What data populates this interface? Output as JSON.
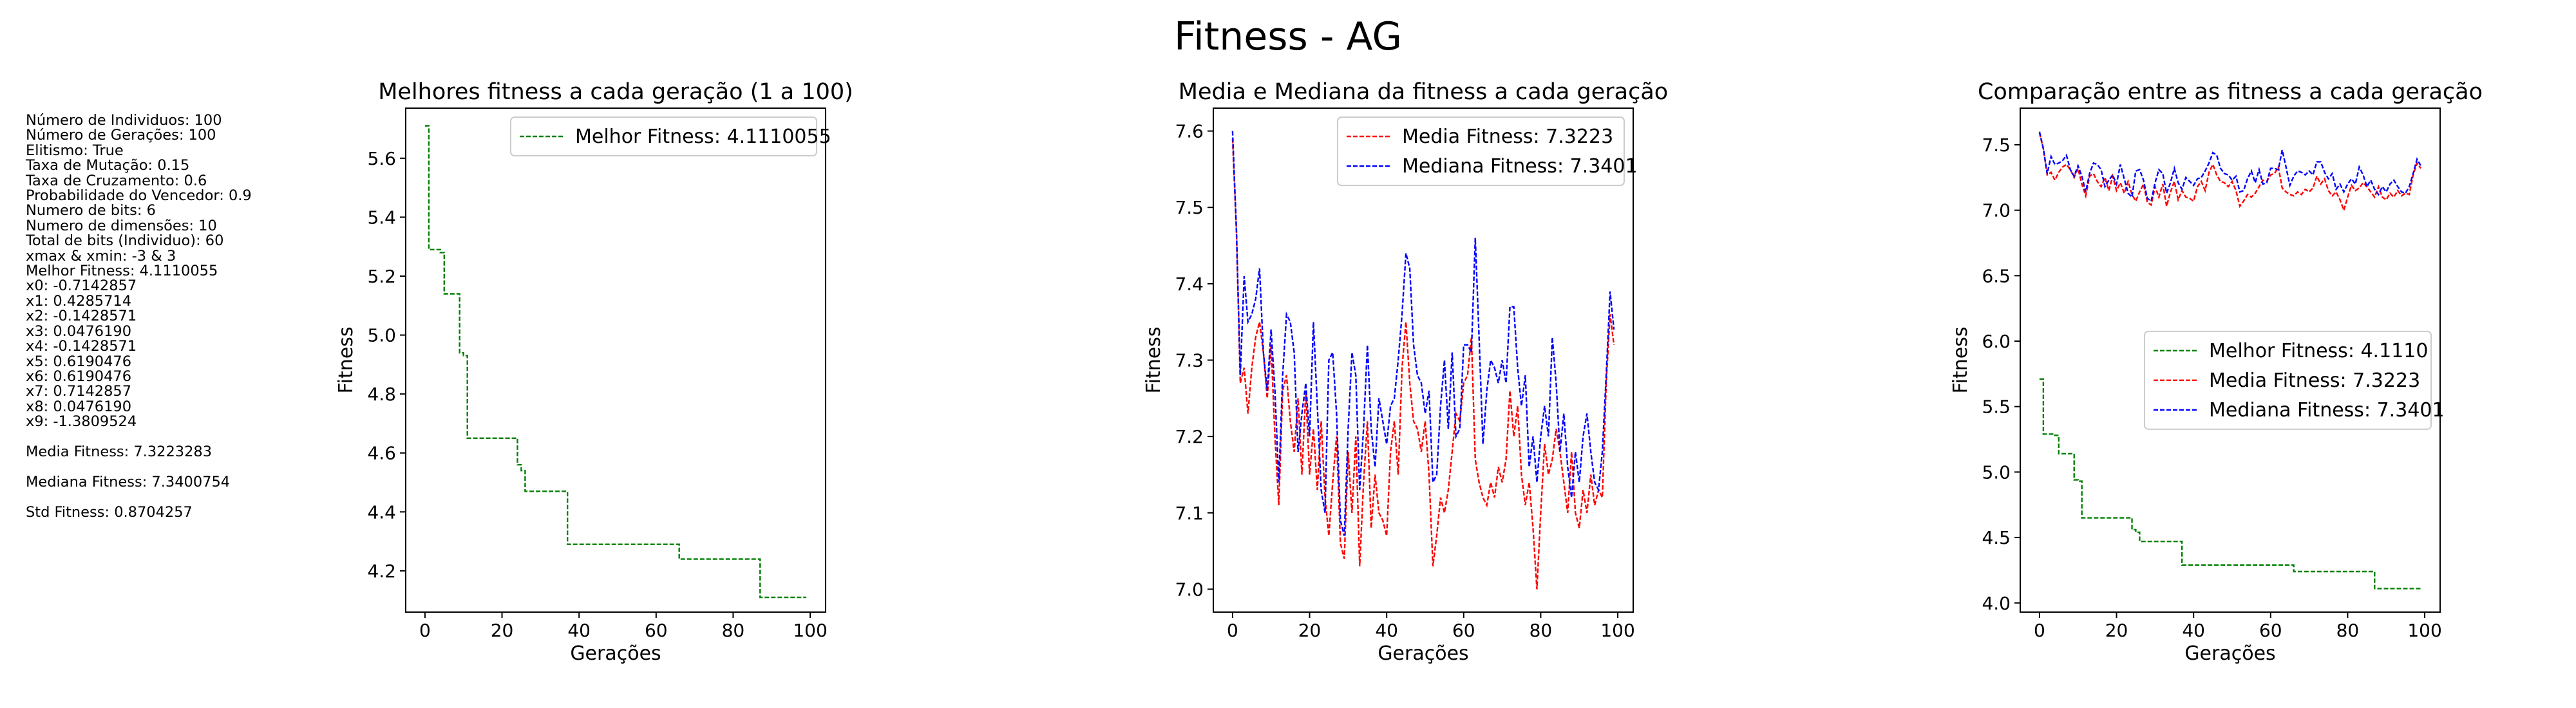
{
  "title": "Fitness - AG",
  "info": {
    "lines": [
      "Número de Individuos: 100",
      "Número de Gerações: 100",
      "Elitismo: True",
      "Taxa de Mutação: 0.15",
      "Taxa de Cruzamento: 0.6",
      "Probabilidade do Vencedor: 0.9",
      "Numero de bits: 6",
      "Numero de dimensões: 10",
      "Total de bits (Individuo): 60",
      "xmax & xmin: -3 & 3",
      "Melhor Fitness: 4.1110055",
      "x0: -0.7142857",
      "x1: 0.4285714",
      "x2: -0.1428571",
      "x3: 0.0476190",
      "x4: -0.1428571",
      "x5: 0.6190476",
      "x6: 0.6190476",
      "x7: 0.7142857",
      "x8: 0.0476190",
      "x9: -1.3809524"
    ],
    "media_line": "Media Fitness: 7.3223283",
    "mediana_line": "Mediana Fitness: 7.3400754",
    "std_line": "Std Fitness: 0.8704257"
  },
  "colors": {
    "best": "#008000",
    "media": "#ff0000",
    "mediana": "#0000ff"
  },
  "chart_data": [
    {
      "type": "line",
      "title": "Melhores fitness a cada geração (1 a 100)",
      "xlabel": "Gerações",
      "ylabel": "Fitness",
      "xlim": [
        -5,
        104
      ],
      "ylim": [
        4.06,
        5.77
      ],
      "xticks": [
        0,
        20,
        40,
        60,
        80,
        100
      ],
      "yticks": [
        4.2,
        4.4,
        4.6,
        4.8,
        5.0,
        5.2,
        5.4,
        5.6
      ],
      "tick_decimals": 1,
      "grid": false,
      "legend_position": "top-right",
      "series": [
        {
          "name": "Melhor Fitness: 4.1110055",
          "color": "#008000",
          "step": true,
          "x": [
            0,
            1,
            2,
            4,
            5,
            8,
            9,
            10,
            11,
            23,
            24,
            25,
            26,
            36,
            37,
            65,
            66,
            86,
            87,
            99
          ],
          "values": [
            5.71,
            5.29,
            5.29,
            5.28,
            5.14,
            5.14,
            4.94,
            4.93,
            4.65,
            4.65,
            4.56,
            4.54,
            4.47,
            4.47,
            4.29,
            4.29,
            4.24,
            4.24,
            4.11,
            4.11
          ]
        }
      ]
    },
    {
      "type": "line",
      "title": "Media e Mediana da fitness a cada geração",
      "xlabel": "Gerações",
      "ylabel": "Fitness",
      "xlim": [
        -5,
        104
      ],
      "ylim": [
        6.97,
        7.63
      ],
      "xticks": [
        0,
        20,
        40,
        60,
        80,
        100
      ],
      "yticks": [
        7.0,
        7.1,
        7.2,
        7.3,
        7.4,
        7.5,
        7.6
      ],
      "tick_decimals": 1,
      "grid": false,
      "legend_position": "top-right",
      "series": [
        {
          "name": "Media Fitness: 7.3223",
          "color": "#ff0000",
          "values": [
            7.59,
            7.47,
            7.27,
            7.29,
            7.23,
            7.29,
            7.33,
            7.35,
            7.31,
            7.25,
            7.32,
            7.2,
            7.11,
            7.26,
            7.28,
            7.22,
            7.18,
            7.25,
            7.15,
            7.26,
            7.15,
            7.21,
            7.13,
            7.22,
            7.12,
            7.07,
            7.14,
            7.2,
            7.06,
            7.04,
            7.18,
            7.1,
            7.2,
            7.03,
            7.14,
            7.22,
            7.08,
            7.15,
            7.1,
            7.09,
            7.07,
            7.18,
            7.22,
            7.15,
            7.29,
            7.35,
            7.27,
            7.22,
            7.21,
            7.18,
            7.22,
            7.15,
            7.03,
            7.07,
            7.12,
            7.1,
            7.13,
            7.18,
            7.23,
            7.22,
            7.27,
            7.28,
            7.33,
            7.17,
            7.14,
            7.12,
            7.11,
            7.14,
            7.12,
            7.16,
            7.14,
            7.17,
            7.26,
            7.2,
            7.24,
            7.15,
            7.11,
            7.14,
            7.08,
            7.0,
            7.1,
            7.19,
            7.15,
            7.17,
            7.21,
            7.18,
            7.14,
            7.1,
            7.18,
            7.1,
            7.08,
            7.13,
            7.1,
            7.15,
            7.11,
            7.13,
            7.12,
            7.27,
            7.36,
            7.32
          ]
        },
        {
          "name": "Mediana Fitness: 7.3401",
          "color": "#0000ff",
          "values": [
            7.6,
            7.47,
            7.28,
            7.41,
            7.35,
            7.36,
            7.38,
            7.42,
            7.31,
            7.26,
            7.34,
            7.26,
            7.14,
            7.28,
            7.36,
            7.35,
            7.31,
            7.18,
            7.23,
            7.27,
            7.2,
            7.35,
            7.24,
            7.13,
            7.1,
            7.3,
            7.31,
            7.23,
            7.09,
            7.07,
            7.21,
            7.31,
            7.28,
            7.13,
            7.21,
            7.32,
            7.21,
            7.16,
            7.25,
            7.22,
            7.19,
            7.24,
            7.25,
            7.3,
            7.36,
            7.44,
            7.42,
            7.32,
            7.28,
            7.27,
            7.23,
            7.26,
            7.14,
            7.15,
            7.24,
            7.3,
            7.21,
            7.31,
            7.2,
            7.21,
            7.32,
            7.32,
            7.31,
            7.46,
            7.33,
            7.19,
            7.26,
            7.3,
            7.29,
            7.27,
            7.3,
            7.27,
            7.37,
            7.37,
            7.29,
            7.24,
            7.28,
            7.16,
            7.2,
            7.14,
            7.2,
            7.24,
            7.2,
            7.33,
            7.27,
            7.18,
            7.23,
            7.16,
            7.12,
            7.18,
            7.14,
            7.2,
            7.23,
            7.18,
            7.14,
            7.13,
            7.18,
            7.28,
            7.39,
            7.34
          ]
        }
      ]
    },
    {
      "type": "line",
      "title": "Comparação entre as fitness a cada geração",
      "xlabel": "Gerações",
      "ylabel": "Fitness",
      "xlim": [
        -5,
        104
      ],
      "ylim": [
        3.93,
        7.78
      ],
      "xticks": [
        0,
        20,
        40,
        60,
        80,
        100
      ],
      "yticks": [
        4.0,
        4.5,
        5.0,
        5.5,
        6.0,
        6.5,
        7.0,
        7.5
      ],
      "tick_decimals": 1,
      "grid": false,
      "legend_position": "center-right",
      "series": [
        {
          "name": "Melhor Fitness: 4.1110",
          "color": "#008000",
          "step": true,
          "x": [
            0,
            1,
            2,
            4,
            5,
            8,
            9,
            10,
            11,
            23,
            24,
            25,
            26,
            36,
            37,
            65,
            66,
            86,
            87,
            99
          ],
          "values": [
            5.71,
            5.29,
            5.29,
            5.28,
            5.14,
            5.14,
            4.94,
            4.93,
            4.65,
            4.65,
            4.56,
            4.54,
            4.47,
            4.47,
            4.29,
            4.29,
            4.24,
            4.24,
            4.11,
            4.11
          ]
        },
        {
          "name": "Media Fitness: 7.3223",
          "color": "#ff0000",
          "values": [
            7.59,
            7.47,
            7.27,
            7.29,
            7.23,
            7.29,
            7.33,
            7.35,
            7.31,
            7.25,
            7.32,
            7.2,
            7.11,
            7.26,
            7.28,
            7.22,
            7.18,
            7.25,
            7.15,
            7.26,
            7.15,
            7.21,
            7.13,
            7.22,
            7.12,
            7.07,
            7.14,
            7.2,
            7.06,
            7.04,
            7.18,
            7.1,
            7.2,
            7.03,
            7.14,
            7.22,
            7.08,
            7.15,
            7.1,
            7.09,
            7.07,
            7.18,
            7.22,
            7.15,
            7.29,
            7.35,
            7.27,
            7.22,
            7.21,
            7.18,
            7.22,
            7.15,
            7.03,
            7.07,
            7.12,
            7.1,
            7.13,
            7.18,
            7.23,
            7.22,
            7.27,
            7.28,
            7.33,
            7.17,
            7.14,
            7.12,
            7.11,
            7.14,
            7.12,
            7.16,
            7.14,
            7.17,
            7.26,
            7.2,
            7.24,
            7.15,
            7.11,
            7.14,
            7.08,
            7.0,
            7.1,
            7.19,
            7.15,
            7.17,
            7.21,
            7.18,
            7.14,
            7.1,
            7.18,
            7.1,
            7.08,
            7.13,
            7.1,
            7.15,
            7.11,
            7.13,
            7.12,
            7.27,
            7.36,
            7.32
          ]
        },
        {
          "name": "Mediana Fitness: 7.3401",
          "color": "#0000ff",
          "values": [
            7.6,
            7.47,
            7.28,
            7.41,
            7.35,
            7.36,
            7.38,
            7.42,
            7.31,
            7.26,
            7.34,
            7.26,
            7.14,
            7.28,
            7.36,
            7.35,
            7.31,
            7.18,
            7.23,
            7.27,
            7.2,
            7.35,
            7.24,
            7.13,
            7.1,
            7.3,
            7.31,
            7.23,
            7.09,
            7.07,
            7.21,
            7.31,
            7.28,
            7.13,
            7.21,
            7.32,
            7.21,
            7.16,
            7.25,
            7.22,
            7.19,
            7.24,
            7.25,
            7.3,
            7.36,
            7.44,
            7.42,
            7.32,
            7.28,
            7.27,
            7.23,
            7.26,
            7.14,
            7.15,
            7.24,
            7.3,
            7.21,
            7.31,
            7.2,
            7.21,
            7.32,
            7.32,
            7.31,
            7.46,
            7.33,
            7.19,
            7.26,
            7.3,
            7.29,
            7.27,
            7.3,
            7.27,
            7.37,
            7.37,
            7.29,
            7.24,
            7.28,
            7.16,
            7.2,
            7.14,
            7.2,
            7.24,
            7.2,
            7.33,
            7.27,
            7.18,
            7.23,
            7.16,
            7.12,
            7.18,
            7.14,
            7.2,
            7.23,
            7.18,
            7.14,
            7.13,
            7.18,
            7.28,
            7.39,
            7.34
          ]
        }
      ]
    }
  ]
}
